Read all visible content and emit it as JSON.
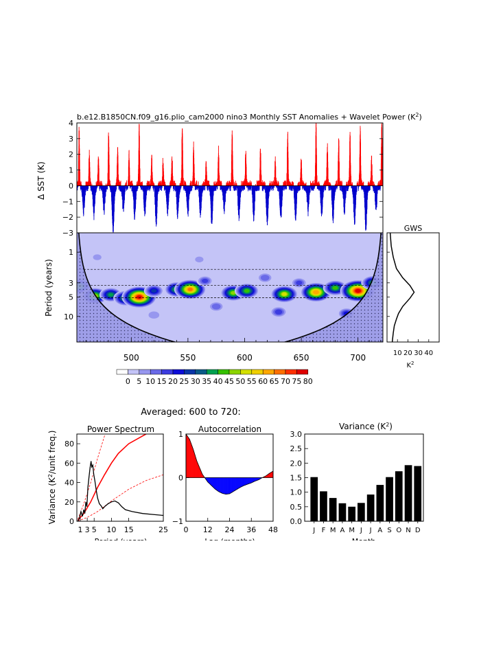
{
  "figure": {
    "title": "b.e12.B1850CN.f09_g16.plio_cam2000 nino3 Monthly SST Anomalies + Wavelet Power (K",
    "title_sup": "2",
    "title_close": ")",
    "averaged_label": "Averaged: 600 to 720:"
  },
  "colors": {
    "positive": "#ff0000",
    "negative": "#0000cc",
    "palette": [
      "#ffffff",
      "#c4c4f7",
      "#9797ef",
      "#6a6ae8",
      "#3c3ce0",
      "#0c0cd8",
      "#0a35a8",
      "#0a5a87",
      "#00a050",
      "#35c000",
      "#8cd400",
      "#d4e000",
      "#f0d000",
      "#ffa800",
      "#ff7000",
      "#ff3000",
      "#e00000"
    ]
  },
  "chart_data": [
    {
      "id": "sst",
      "type": "line",
      "ylabel": "Δ SST (K)",
      "ylim": [
        -3,
        4
      ],
      "yticks": [
        "4",
        "3",
        "2",
        "1",
        "0",
        "−1",
        "−2",
        "−3"
      ],
      "xlim": [
        452,
        722
      ],
      "peaks": [
        {
          "x": 454,
          "y": 3.5
        },
        {
          "x": 463,
          "y": 2.2
        },
        {
          "x": 471,
          "y": 1.9
        },
        {
          "x": 480,
          "y": 3.2
        },
        {
          "x": 488,
          "y": 2.3
        },
        {
          "x": 498,
          "y": 2.0
        },
        {
          "x": 507,
          "y": 3.7
        },
        {
          "x": 518,
          "y": 1.8
        },
        {
          "x": 528,
          "y": 1.6
        },
        {
          "x": 536,
          "y": 1.9
        },
        {
          "x": 545,
          "y": 3.8
        },
        {
          "x": 555,
          "y": 2.6
        },
        {
          "x": 566,
          "y": 1.6
        },
        {
          "x": 577,
          "y": 2.2
        },
        {
          "x": 589,
          "y": 3.4
        },
        {
          "x": 601,
          "y": 2.2
        },
        {
          "x": 614,
          "y": 2.3
        },
        {
          "x": 627,
          "y": 1.6
        },
        {
          "x": 638,
          "y": 3.2
        },
        {
          "x": 650,
          "y": 1.7
        },
        {
          "x": 663,
          "y": 3.9
        },
        {
          "x": 673,
          "y": 2.6
        },
        {
          "x": 683,
          "y": 3.0
        },
        {
          "x": 693,
          "y": 3.1
        },
        {
          "x": 702,
          "y": 3.6
        },
        {
          "x": 712,
          "y": 1.7
        },
        {
          "x": 721,
          "y": 4.0
        }
      ],
      "troughs": [
        {
          "x": 458,
          "y": -1.7
        },
        {
          "x": 467,
          "y": -1.9
        },
        {
          "x": 476,
          "y": -1.6
        },
        {
          "x": 484,
          "y": -2.9
        },
        {
          "x": 493,
          "y": -1.5
        },
        {
          "x": 503,
          "y": -1.9
        },
        {
          "x": 512,
          "y": -1.7
        },
        {
          "x": 522,
          "y": -2.3
        },
        {
          "x": 532,
          "y": -1.6
        },
        {
          "x": 541,
          "y": -1.9
        },
        {
          "x": 550,
          "y": -1.7
        },
        {
          "x": 561,
          "y": -1.8
        },
        {
          "x": 571,
          "y": -2.3
        },
        {
          "x": 582,
          "y": -1.5
        },
        {
          "x": 595,
          "y": -1.9
        },
        {
          "x": 608,
          "y": -2.0
        },
        {
          "x": 620,
          "y": -2.4
        },
        {
          "x": 632,
          "y": -2.0
        },
        {
          "x": 645,
          "y": -2.0
        },
        {
          "x": 656,
          "y": -1.6
        },
        {
          "x": 668,
          "y": -1.8
        },
        {
          "x": 678,
          "y": -2.1
        },
        {
          "x": 688,
          "y": -1.6
        },
        {
          "x": 697,
          "y": -2.2
        },
        {
          "x": 707,
          "y": -2.7
        },
        {
          "x": 716,
          "y": -1.4
        }
      ]
    },
    {
      "id": "wavelet",
      "type": "heatmap",
      "ylabel": "Period (years)",
      "xlim": [
        452,
        722
      ],
      "xticks": [
        500,
        550,
        600,
        650,
        700
      ],
      "yticks": [
        "1",
        "3",
        "5",
        "10"
      ],
      "ytick_periods": [
        1,
        3,
        5,
        10
      ],
      "ylim_log_period": [
        0.5,
        25
      ],
      "dashed_periods": [
        1.85,
        3.3,
        5.1
      ],
      "blobs": [
        {
          "x": 454,
          "p": 3.4,
          "v": 48
        },
        {
          "x": 468,
          "p": 4.8,
          "v": 52
        },
        {
          "x": 482,
          "p": 4.6,
          "v": 40
        },
        {
          "x": 495,
          "p": 5.2,
          "v": 45
        },
        {
          "x": 507,
          "p": 5.0,
          "v": 80
        },
        {
          "x": 520,
          "p": 4.0,
          "v": 30
        },
        {
          "x": 540,
          "p": 3.8,
          "v": 45
        },
        {
          "x": 552,
          "p": 3.8,
          "v": 70
        },
        {
          "x": 565,
          "p": 2.8,
          "v": 20
        },
        {
          "x": 590,
          "p": 4.3,
          "v": 50
        },
        {
          "x": 602,
          "p": 4.0,
          "v": 45
        },
        {
          "x": 618,
          "p": 2.5,
          "v": 18
        },
        {
          "x": 635,
          "p": 4.5,
          "v": 55
        },
        {
          "x": 648,
          "p": 3.0,
          "v": 20
        },
        {
          "x": 663,
          "p": 4.2,
          "v": 68
        },
        {
          "x": 680,
          "p": 3.6,
          "v": 45
        },
        {
          "x": 700,
          "p": 4.0,
          "v": 82
        },
        {
          "x": 713,
          "p": 3.0,
          "v": 40
        },
        {
          "x": 575,
          "p": 7.0,
          "v": 18
        },
        {
          "x": 630,
          "p": 8.5,
          "v": 22
        },
        {
          "x": 690,
          "p": 9.0,
          "v": 25
        },
        {
          "x": 520,
          "p": 9.5,
          "v": 14
        },
        {
          "x": 470,
          "p": 1.2,
          "v": 10
        },
        {
          "x": 560,
          "p": 1.3,
          "v": 10
        }
      ]
    },
    {
      "id": "gws",
      "type": "line",
      "title": "GWS",
      "xlabel": "K",
      "xlabel_sup": "2",
      "xticks": [
        "10",
        "20",
        "30",
        "40"
      ],
      "xlim": [
        0,
        50
      ],
      "points": [
        {
          "p": 0.5,
          "v": 3
        },
        {
          "p": 0.8,
          "v": 4
        },
        {
          "p": 1.2,
          "v": 6
        },
        {
          "p": 1.8,
          "v": 9
        },
        {
          "p": 2.5,
          "v": 15
        },
        {
          "p": 3.3,
          "v": 22
        },
        {
          "p": 4.2,
          "v": 26
        },
        {
          "p": 5.2,
          "v": 22
        },
        {
          "p": 7.0,
          "v": 15
        },
        {
          "p": 9.0,
          "v": 11
        },
        {
          "p": 11,
          "v": 9
        },
        {
          "p": 14,
          "v": 7
        },
        {
          "p": 18,
          "v": 6
        },
        {
          "p": 25,
          "v": 5
        }
      ]
    },
    {
      "id": "colorbar",
      "type": "table",
      "labels": [
        "0",
        "5",
        "10",
        "15",
        "20",
        "25",
        "30",
        "35",
        "40",
        "45",
        "50",
        "55",
        "60",
        "65",
        "70",
        "75",
        "80"
      ]
    },
    {
      "id": "spectrum",
      "type": "line",
      "title": "Power Spectrum",
      "xlabel": "Period (years)",
      "ylabel": "Variance (K",
      "ylabel_sup": "2",
      "ylabel_end": "/unit freq.)",
      "xticks": [
        "1",
        "3",
        "5",
        "10",
        "15",
        "25"
      ],
      "xtick_values": [
        1,
        3,
        5,
        10,
        15,
        25
      ],
      "yticks": [
        "0",
        "20",
        "40",
        "60",
        "80"
      ],
      "ytick_values": [
        0,
        20,
        40,
        60,
        80
      ],
      "xlim": [
        0,
        25
      ],
      "ylim": [
        0,
        90
      ],
      "spectrum": [
        [
          0.3,
          0
        ],
        [
          0.8,
          4
        ],
        [
          1.2,
          10
        ],
        [
          1.6,
          5
        ],
        [
          2,
          12
        ],
        [
          2.3,
          8
        ],
        [
          2.6,
          20
        ],
        [
          2.9,
          15
        ],
        [
          3.2,
          35
        ],
        [
          3.5,
          45
        ],
        [
          3.8,
          55
        ],
        [
          4.1,
          62
        ],
        [
          4.3,
          56
        ],
        [
          4.6,
          58
        ],
        [
          4.9,
          48
        ],
        [
          5.2,
          42
        ],
        [
          5.6,
          32
        ],
        [
          6,
          24
        ],
        [
          6.5,
          18
        ],
        [
          7,
          16
        ],
        [
          7.5,
          13
        ],
        [
          8,
          15
        ],
        [
          9,
          18
        ],
        [
          10,
          20
        ],
        [
          11,
          21
        ],
        [
          12,
          19
        ],
        [
          13,
          15
        ],
        [
          14,
          12
        ],
        [
          16,
          10
        ],
        [
          19,
          8
        ],
        [
          22,
          7
        ],
        [
          25,
          6
        ]
      ],
      "red_noise": [
        [
          0.3,
          1
        ],
        [
          2,
          8
        ],
        [
          4,
          20
        ],
        [
          6,
          35
        ],
        [
          8,
          48
        ],
        [
          10,
          60
        ],
        [
          12,
          70
        ],
        [
          15,
          80
        ],
        [
          20,
          90
        ],
        [
          22,
          94
        ]
      ],
      "ci_upper": [
        [
          0.3,
          2
        ],
        [
          2,
          18
        ],
        [
          4,
          40
        ],
        [
          6,
          65
        ],
        [
          8,
          88
        ],
        [
          8.7,
          94
        ]
      ],
      "ci_lower": [
        [
          0.3,
          0.3
        ],
        [
          3,
          4
        ],
        [
          6,
          10
        ],
        [
          10,
          21
        ],
        [
          15,
          33
        ],
        [
          20,
          42
        ],
        [
          25,
          48
        ]
      ]
    },
    {
      "id": "autocorrelation",
      "type": "area",
      "title": "Autocorrelation",
      "xlabel": "Lag (months)",
      "xticks": [
        "0",
        "12",
        "24",
        "36",
        "48"
      ],
      "xtick_values": [
        0,
        12,
        24,
        36,
        48
      ],
      "yticks": [
        "1",
        "0",
        "−1"
      ],
      "ytick_values": [
        1,
        0,
        -1
      ],
      "xlim": [
        0,
        48
      ],
      "ylim": [
        -1,
        1
      ],
      "values": [
        [
          0,
          1
        ],
        [
          2,
          0.88
        ],
        [
          4,
          0.65
        ],
        [
          6,
          0.38
        ],
        [
          8,
          0.18
        ],
        [
          9,
          0.08
        ],
        [
          10,
          0.02
        ],
        [
          11,
          -0.04
        ],
        [
          12,
          -0.1
        ],
        [
          14,
          -0.18
        ],
        [
          16,
          -0.26
        ],
        [
          18,
          -0.32
        ],
        [
          20,
          -0.36
        ],
        [
          22,
          -0.38
        ],
        [
          24,
          -0.37
        ],
        [
          26,
          -0.32
        ],
        [
          28,
          -0.27
        ],
        [
          30,
          -0.22
        ],
        [
          32,
          -0.18
        ],
        [
          34,
          -0.15
        ],
        [
          36,
          -0.12
        ],
        [
          38,
          -0.08
        ],
        [
          40,
          -0.05
        ],
        [
          42,
          0.0
        ],
        [
          44,
          0.04
        ],
        [
          46,
          0.1
        ],
        [
          48,
          0.15
        ]
      ]
    },
    {
      "id": "variance",
      "type": "bar",
      "title": "Variance (K",
      "title_sup": "2",
      "title_close": ")",
      "xlabel": "Month",
      "categories": [
        "J",
        "F",
        "M",
        "A",
        "M",
        "J",
        "J",
        "A",
        "S",
        "O",
        "N",
        "D"
      ],
      "values": [
        1.52,
        1.03,
        0.8,
        0.62,
        0.5,
        0.63,
        0.92,
        1.25,
        1.52,
        1.72,
        1.93,
        1.9
      ],
      "yticks": [
        "0.0",
        "0.5",
        "1.0",
        "1.5",
        "2.0",
        "2.5",
        "3.0"
      ],
      "ytick_values": [
        0,
        0.5,
        1,
        1.5,
        2,
        2.5,
        3
      ],
      "ylim": [
        0,
        3
      ]
    }
  ]
}
